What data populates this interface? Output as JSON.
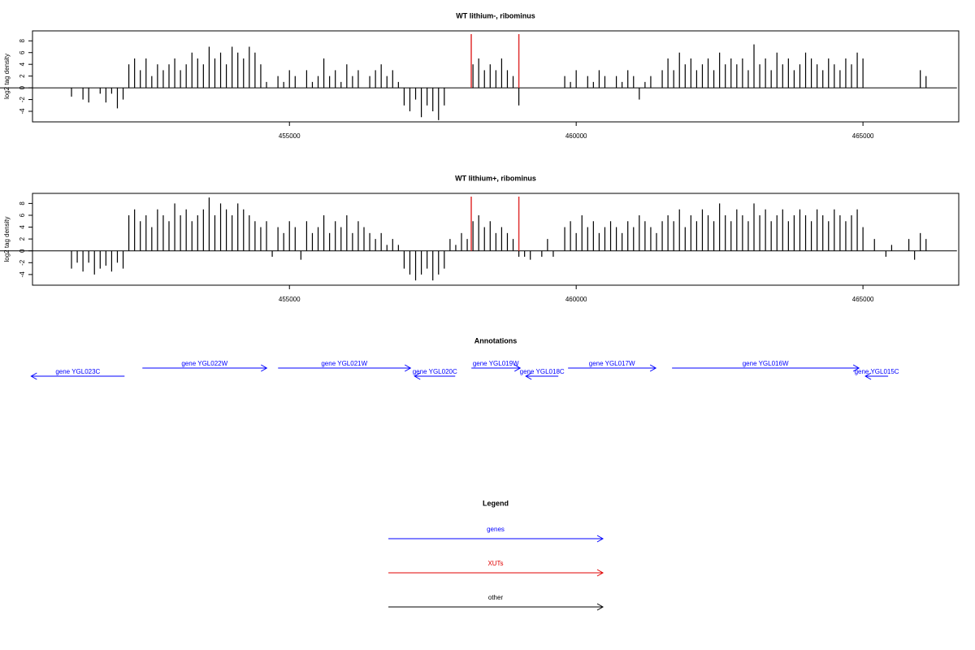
{
  "chart_data": [
    {
      "type": "bar",
      "title": "WT lithium-, ribominus",
      "ylabel": "log2 tag density",
      "color": "#000000",
      "x": [
        451200,
        451300,
        451400,
        451500,
        451600,
        451700,
        451800,
        451900,
        452000,
        452100,
        452200,
        452300,
        452400,
        452500,
        452600,
        452700,
        452800,
        452900,
        453000,
        453100,
        453200,
        453300,
        453400,
        453500,
        453600,
        453700,
        453800,
        453900,
        454000,
        454100,
        454200,
        454300,
        454400,
        454500,
        454600,
        454700,
        454800,
        454900,
        455000,
        455100,
        455200,
        455300,
        455400,
        455500,
        455600,
        455700,
        455800,
        455900,
        456000,
        456100,
        456200,
        456300,
        456400,
        456500,
        456600,
        456700,
        456800,
        456900,
        457000,
        457100,
        457200,
        457300,
        457400,
        457500,
        457600,
        457700,
        457800,
        457900,
        458000,
        458100,
        458200,
        458300,
        458400,
        458500,
        458600,
        458700,
        458800,
        458900,
        459000,
        459100,
        459200,
        459300,
        459400,
        459500,
        459600,
        459700,
        459800,
        459900,
        460000,
        460100,
        460200,
        460300,
        460400,
        460500,
        460600,
        460700,
        460800,
        460900,
        461000,
        461100,
        461200,
        461300,
        461400,
        461500,
        461600,
        461700,
        461800,
        461900,
        462000,
        462100,
        462200,
        462300,
        462400,
        462500,
        462600,
        462700,
        462800,
        462900,
        463000,
        463100,
        463200,
        463300,
        463400,
        463500,
        463600,
        463700,
        463800,
        463900,
        464000,
        464100,
        464200,
        464300,
        464400,
        464500,
        464600,
        464700,
        464800,
        464900,
        465000,
        465100,
        465200,
        465300,
        465400,
        465500,
        465600,
        465700,
        465800,
        465900,
        466000,
        466100
      ],
      "values": [
        -1.5,
        null,
        -2,
        -2.5,
        null,
        -1,
        -2.5,
        -1,
        -3.5,
        -2,
        4,
        5,
        3,
        5,
        2,
        4,
        3,
        4,
        5,
        3,
        4,
        6,
        5,
        4,
        7,
        5,
        6,
        4,
        7,
        6,
        5,
        7,
        6,
        4,
        1,
        null,
        2,
        1,
        3,
        2,
        null,
        3,
        1,
        2,
        5,
        2,
        3,
        1,
        4,
        2,
        3,
        null,
        2,
        3,
        4,
        2,
        3,
        1,
        -3,
        -4,
        -2,
        -5,
        -3,
        -4,
        -5.5,
        -3,
        null,
        null,
        null,
        null,
        4,
        5,
        3,
        4,
        3,
        5,
        3,
        2,
        -3,
        null,
        null,
        null,
        null,
        null,
        null,
        null,
        2,
        1,
        3,
        null,
        2,
        1,
        3,
        2,
        null,
        2,
        1,
        3,
        2,
        -2,
        1,
        2,
        null,
        3,
        5,
        3,
        6,
        4,
        5,
        3,
        4,
        5,
        3,
        6,
        4,
        5,
        4,
        5,
        3,
        7.4,
        4,
        5,
        3,
        6,
        4,
        5,
        3,
        4,
        6,
        5,
        4,
        3,
        5,
        4,
        3,
        5,
        4,
        6,
        5,
        null,
        null,
        null,
        null,
        null,
        null,
        null,
        null,
        null,
        3,
        2
      ],
      "xlim": [
        450520,
        466670
      ],
      "ylim": [
        -5.8,
        9.7
      ],
      "xticks": [
        455000,
        460000,
        465000
      ],
      "yticks": [
        -4,
        -2,
        0,
        2,
        4,
        6,
        8
      ],
      "vlines": [
        458170,
        459000
      ],
      "vline_color": "#e03030"
    },
    {
      "type": "bar",
      "title": "WT lithium+, ribominus",
      "ylabel": "log2 tag density",
      "color": "#000000",
      "x": [
        451200,
        451300,
        451400,
        451500,
        451600,
        451700,
        451800,
        451900,
        452000,
        452100,
        452200,
        452300,
        452400,
        452500,
        452600,
        452700,
        452800,
        452900,
        453000,
        453100,
        453200,
        453300,
        453400,
        453500,
        453600,
        453700,
        453800,
        453900,
        454000,
        454100,
        454200,
        454300,
        454400,
        454500,
        454600,
        454700,
        454800,
        454900,
        455000,
        455100,
        455200,
        455300,
        455400,
        455500,
        455600,
        455700,
        455800,
        455900,
        456000,
        456100,
        456200,
        456300,
        456400,
        456500,
        456600,
        456700,
        456800,
        456900,
        457000,
        457100,
        457200,
        457300,
        457400,
        457500,
        457600,
        457700,
        457800,
        457900,
        458000,
        458100,
        458200,
        458300,
        458400,
        458500,
        458600,
        458700,
        458800,
        458900,
        459000,
        459100,
        459200,
        459300,
        459400,
        459500,
        459600,
        459700,
        459800,
        459900,
        460000,
        460100,
        460200,
        460300,
        460400,
        460500,
        460600,
        460700,
        460800,
        460900,
        461000,
        461100,
        461200,
        461300,
        461400,
        461500,
        461600,
        461700,
        461800,
        461900,
        462000,
        462100,
        462200,
        462300,
        462400,
        462500,
        462600,
        462700,
        462800,
        462900,
        463000,
        463100,
        463200,
        463300,
        463400,
        463500,
        463600,
        463700,
        463800,
        463900,
        464000,
        464100,
        464200,
        464300,
        464400,
        464500,
        464600,
        464700,
        464800,
        464900,
        465000,
        465100,
        465200,
        465300,
        465400,
        465500,
        465600,
        465700,
        465800,
        465900,
        466000,
        466100
      ],
      "values": [
        -3,
        -2,
        -3.5,
        -2,
        -4,
        -3,
        -2.5,
        -3.5,
        -2,
        -3,
        6,
        7,
        5,
        6,
        4,
        7,
        6,
        5,
        8,
        6,
        7,
        5,
        6,
        7,
        9,
        6,
        8,
        7,
        6,
        8,
        7,
        6,
        5,
        4,
        5,
        -1,
        4,
        3,
        5,
        4,
        -1.5,
        5,
        3,
        4,
        6,
        3,
        5,
        4,
        6,
        3,
        5,
        4,
        3,
        2,
        3,
        1,
        2,
        1,
        -3,
        -4,
        -5,
        -4,
        -3,
        -5,
        -4,
        -3,
        2,
        1,
        3,
        2,
        5,
        6,
        4,
        5,
        3,
        4,
        3,
        2,
        -1,
        -1,
        -1.5,
        null,
        -1,
        2,
        -1,
        null,
        4,
        5,
        3,
        6,
        4,
        5,
        3,
        4,
        5,
        4,
        3,
        5,
        4,
        6,
        5,
        4,
        3,
        5,
        6,
        5,
        7,
        4,
        6,
        5,
        7,
        6,
        5,
        8,
        6,
        5,
        7,
        6,
        5,
        8,
        6,
        7,
        5,
        6,
        7,
        5,
        6,
        7,
        6,
        5,
        7,
        6,
        5,
        7,
        6,
        5,
        6,
        7,
        4,
        null,
        2,
        null,
        -1,
        1,
        null,
        null,
        2,
        -1.5,
        3,
        2
      ],
      "xlim": [
        450520,
        466670
      ],
      "ylim": [
        -5.8,
        9.7
      ],
      "xticks": [
        455000,
        460000,
        465000
      ],
      "yticks": [
        -4,
        -2,
        0,
        2,
        4,
        6,
        8
      ],
      "vlines": [
        458170,
        459000
      ],
      "vline_color": "#e03030"
    }
  ],
  "annotations": {
    "title": "Annotations",
    "color": "#0000ff",
    "genes": [
      {
        "label": "gene YGL023C",
        "start": 450497,
        "end": 452125,
        "strand": "-"
      },
      {
        "label": "gene YGL022W",
        "start": 452436,
        "end": 454604,
        "strand": "+"
      },
      {
        "label": "gene YGL021W",
        "start": 454802,
        "end": 457111,
        "strand": "+"
      },
      {
        "label": "gene YGL020C",
        "start": 457182,
        "end": 457890,
        "strand": "-"
      },
      {
        "label": "gene YGL019W",
        "start": 458173,
        "end": 459023,
        "strand": "+"
      },
      {
        "label": "gene YGL018C",
        "start": 459122,
        "end": 459688,
        "strand": "-"
      },
      {
        "label": "gene YGL017W",
        "start": 459858,
        "end": 461388,
        "strand": "+"
      },
      {
        "label": "gene YGL016W",
        "start": 461671,
        "end": 464929,
        "strand": "+"
      },
      {
        "label": "gene YGL015C",
        "start": 465042,
        "end": 465439,
        "strand": "-"
      }
    ]
  },
  "legend": {
    "title": "Legend",
    "items": [
      {
        "name": "genes",
        "color": "#0000ff"
      },
      {
        "name": "XUTs",
        "color": "#e00000"
      },
      {
        "name": "other",
        "color": "#000000"
      }
    ]
  }
}
